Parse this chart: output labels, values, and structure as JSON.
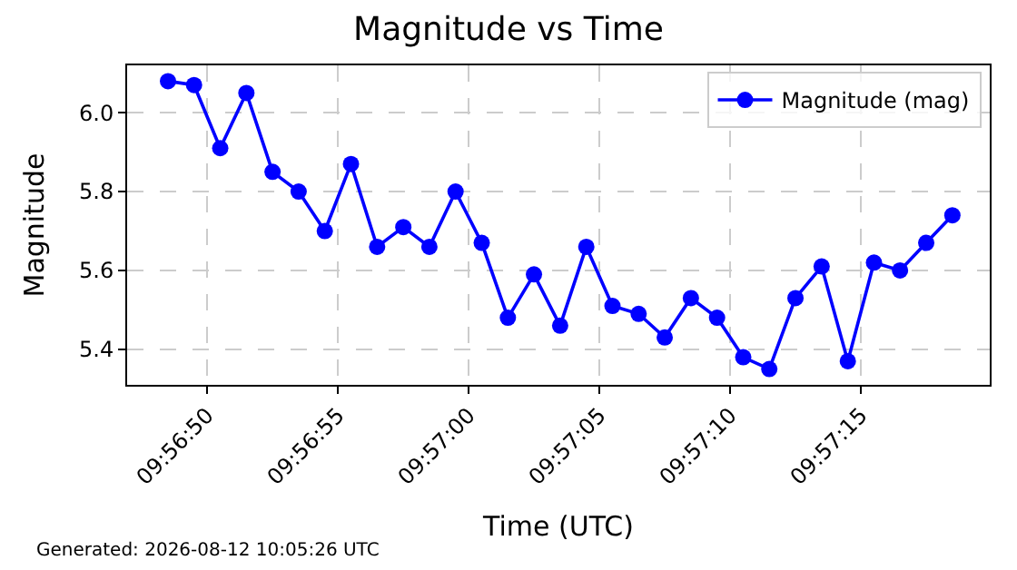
{
  "chart_data": {
    "type": "line",
    "title": "Magnitude vs Time",
    "xlabel": "Time (UTC)",
    "ylabel": "Magnitude",
    "x": [
      9.946806,
      9.947083,
      9.947361,
      9.947639,
      9.947917,
      9.948194,
      9.948472,
      9.94875,
      9.949028,
      9.949306,
      9.949583,
      9.949861,
      9.950139,
      9.950417,
      9.950694,
      9.950972,
      9.95125,
      9.951528,
      9.951806,
      9.952083,
      9.952361,
      9.952639,
      9.952917,
      9.953194,
      9.953472,
      9.95375,
      9.954028,
      9.954306,
      9.954583,
      9.954861,
      9.955139
    ],
    "series": [
      {
        "name": "Magnitude (mag)",
        "color": "#0000ff",
        "values": [
          6.08,
          6.07,
          5.91,
          6.05,
          5.85,
          5.8,
          5.7,
          5.87,
          5.66,
          5.71,
          5.66,
          5.8,
          5.67,
          5.48,
          5.59,
          5.46,
          5.66,
          5.51,
          5.49,
          5.43,
          5.53,
          5.48,
          5.38,
          5.35,
          5.53,
          5.61,
          5.37,
          5.62,
          5.6,
          5.67,
          5.74
        ]
      }
    ],
    "xlim": [
      9.946372,
      9.955536
    ],
    "xticks": [
      {
        "value": 9.947222,
        "label": "09:56:50"
      },
      {
        "value": 9.948611,
        "label": "09:56:55"
      },
      {
        "value": 9.95,
        "label": "09:57:00"
      },
      {
        "value": 9.951389,
        "label": "09:57:05"
      },
      {
        "value": 9.952778,
        "label": "09:57:10"
      },
      {
        "value": 9.954167,
        "label": "09:57:15"
      }
    ],
    "ylim": [
      5.31,
      6.12
    ],
    "yticks": [
      {
        "value": 5.4,
        "label": "5.4"
      },
      {
        "value": 5.6,
        "label": "5.6"
      },
      {
        "value": 5.8,
        "label": "5.8"
      },
      {
        "value": 6.0,
        "label": "6.0"
      }
    ],
    "grid": true,
    "legend": "top right",
    "marker": "circle",
    "line_style": "solid",
    "annotations": [
      "Generated: 2026-08-12 10:05:26 UTC"
    ]
  }
}
